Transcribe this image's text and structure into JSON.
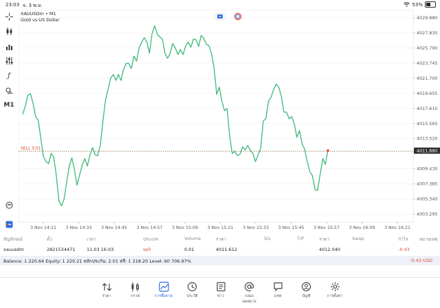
{
  "status_bar": {
    "time": "23:03",
    "date": "จ. 3 พ.ย.",
    "battery": "53%",
    "battery_level": 0.53
  },
  "chart": {
    "symbol_line": "XAUUSDm • M1",
    "description": "Gold vs US Dollar",
    "timeframe_button": "M1",
    "sell_label": "SELL 0.01",
    "current_price": "4011.880",
    "colors": {
      "line": "#3cb878",
      "sell": "#e0453a",
      "price_tag_bg": "#2f2f2f",
      "grid": "#e6e6e6"
    }
  },
  "chart_data": {
    "type": "line",
    "x_ticks": [
      "3 Nov 14:21",
      "3 Nov 14:33",
      "3 Nov 14:45",
      "3 Nov 14:57",
      "3 Nov 15:09",
      "3 Nov 15:21",
      "3 Nov 15:33",
      "3 Nov 15:45",
      "3 Nov 15:57",
      "3 Nov 16:09",
      "3 Nov 16:21"
    ],
    "y_ticks": [
      4029.88,
      4027.835,
      4025.79,
      4023.745,
      4021.7,
      4019.655,
      4017.61,
      4015.565,
      4013.52,
      4011.88,
      4009.43,
      4007.385,
      4005.34,
      4003.295
    ],
    "ylim": [
      4002.2,
      4031.0
    ],
    "series": [
      {
        "values": [
          4016.8,
          4017.9,
          4019.4,
          4019.6,
          4018.3,
          4016.5,
          4016.0,
          4013.6,
          4011.1,
          4010.4,
          4010.1,
          4011.5,
          4011.0,
          4008.5,
          4005.1,
          4004.4,
          4005.3,
          4007.6,
          4009.8,
          4010.9,
          4009.3,
          4007.2,
          4008.6,
          4009.9,
          4010.8,
          4009.8,
          4011.3,
          4012.3,
          4011.3,
          4011.2,
          4012.6,
          4015.8,
          4018.7,
          4020.2,
          4021.7,
          4022.2,
          4021.4,
          4022.2,
          4021.4,
          4022.9,
          4023.7,
          4023.7,
          4023.0,
          4024.7,
          4024.0,
          4025.8,
          4026.6,
          4027.2,
          4026.6,
          4025.1,
          4027.7,
          4028.8,
          4027.7,
          4027.3,
          4027.0,
          4025.1,
          4024.4,
          4025.1,
          4026.4,
          4025.8,
          4024.9,
          4025.6,
          4024.9,
          4026.1,
          4026.6,
          4025.9,
          4027.0,
          4026.9,
          4026.0,
          4027.5,
          4027.1,
          4026.3,
          4026.1,
          4025.0,
          4023.1,
          4019.5,
          4020.5,
          4018.6,
          4017.3,
          4017.6,
          4013.9,
          4011.5,
          4011.8,
          4011.2,
          4011.4,
          4012.4,
          4012.0,
          4012.6,
          4011.9,
          4011.5,
          4010.4,
          4011.3,
          4012.2,
          4015.9,
          4016.2,
          4018.6,
          4019.1,
          4020.2,
          4020.9,
          4020.5,
          4019.2,
          4017.1,
          4017.1,
          4016.2,
          4016.5,
          4015.5,
          4013.7,
          4014.6,
          4012.8,
          4012.1,
          4010.4,
          4009.0,
          4008.5,
          4006.6,
          4006.5,
          4008.7,
          4010.8,
          4010.0,
          4011.9
        ]
      }
    ]
  },
  "tools": [
    "crosshair-icon",
    "candles-icon",
    "volume-icon",
    "settings-icon",
    "function-icon",
    "draw-icon",
    "timeframe",
    "quick-icon",
    "app-icon"
  ],
  "table": {
    "headers": [
      "สัญลักษณ์",
      "ตั๋ว",
      "เวลา",
      "ประเภท",
      "Volume",
      "ราคา",
      "S/L",
      "T/P",
      "ราคา",
      "Swap",
      "กำไร",
      "หมายเหตุ"
    ],
    "row": [
      "xauusdm",
      "2821534471",
      "11.03 16:03",
      "sell",
      "0.01",
      "4011.612",
      "",
      "",
      "4012.040",
      "",
      "-0.43",
      ""
    ]
  },
  "balance": {
    "text": "Balance: 1 220.64 Equity: 1 220.21 หลักประกัน: 2.01 ฟรี: 1 218.20 Level: 60 706.97%",
    "pl": "-0.43",
    "currency": "USD"
  },
  "nav": [
    {
      "label": "ราคา",
      "icon": "quotes-icon"
    },
    {
      "label": "กราฟ",
      "icon": "chart-icon"
    },
    {
      "label": "การซื้อขาย",
      "icon": "trade-icon",
      "active": true
    },
    {
      "label": "ประวัติ",
      "icon": "history-icon"
    },
    {
      "label": "ข่าว",
      "icon": "news-icon"
    },
    {
      "label": "กล่องจดหมาย",
      "icon": "mailbox-icon"
    },
    {
      "label": "แชท",
      "icon": "chat-icon"
    },
    {
      "label": "บัญชี",
      "icon": "account-icon"
    },
    {
      "label": "การตั้งค่า",
      "icon": "settings-gear-icon"
    }
  ]
}
